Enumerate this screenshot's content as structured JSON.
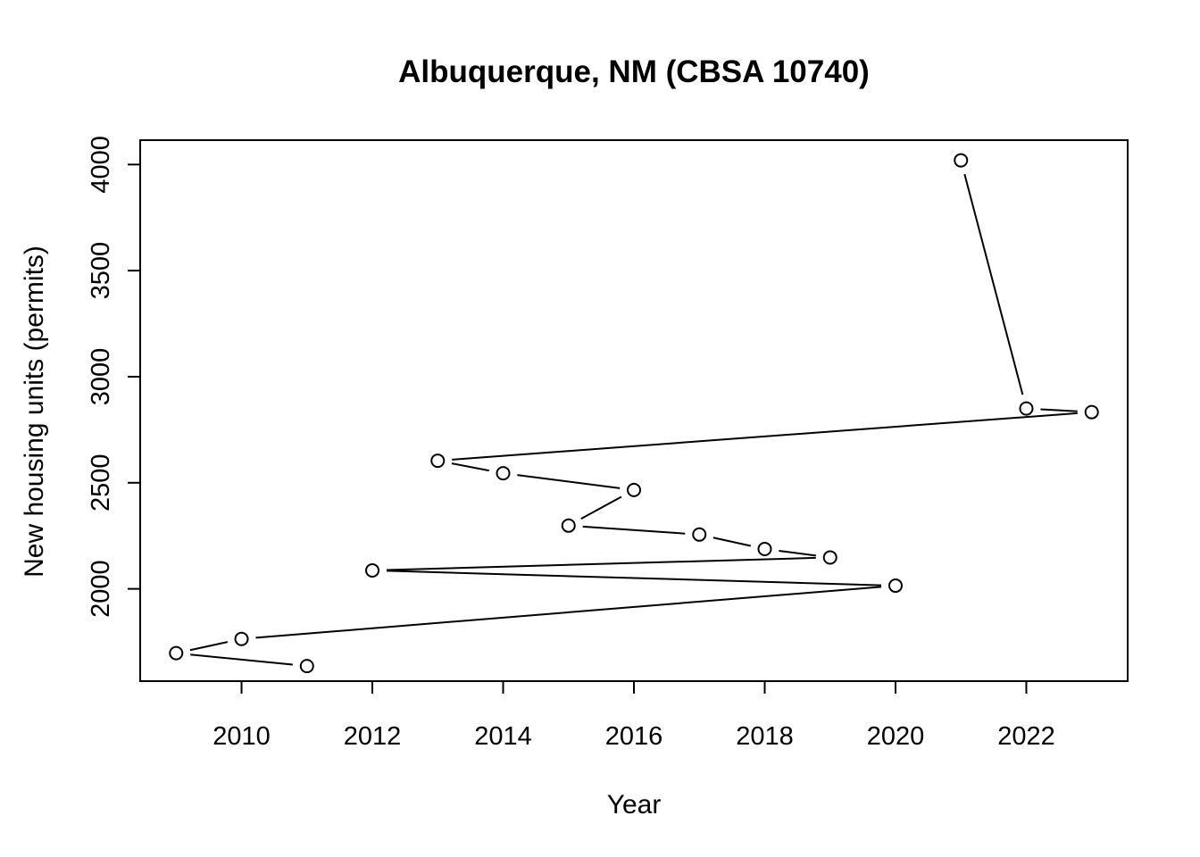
{
  "chart_data": {
    "type": "line",
    "title": "Albuquerque, NM (CBSA 10740)",
    "xlabel": "Year",
    "ylabel": "New housing units (permits)",
    "xlim": [
      2008.45,
      2023.55
    ],
    "ylim": [
      1565,
      4115
    ],
    "x_ticks": [
      2010,
      2012,
      2014,
      2016,
      2018,
      2020,
      2022
    ],
    "y_ticks": [
      2000,
      2500,
      3000,
      3500,
      4000
    ],
    "grid": false,
    "marker": "open-circle",
    "series": [
      {
        "points": [
          {
            "x": 2021,
            "y": 4020
          },
          {
            "x": 2022,
            "y": 2850
          },
          {
            "x": 2023,
            "y": 2833
          },
          {
            "x": 2013,
            "y": 2604
          },
          {
            "x": 2014,
            "y": 2545
          },
          {
            "x": 2016,
            "y": 2466
          },
          {
            "x": 2015,
            "y": 2298
          },
          {
            "x": 2017,
            "y": 2256
          },
          {
            "x": 2018,
            "y": 2188
          },
          {
            "x": 2019,
            "y": 2148
          },
          {
            "x": 2012,
            "y": 2087
          },
          {
            "x": 2020,
            "y": 2015
          },
          {
            "x": 2010,
            "y": 1764
          },
          {
            "x": 2009,
            "y": 1697
          },
          {
            "x": 2011,
            "y": 1636
          }
        ]
      }
    ]
  }
}
